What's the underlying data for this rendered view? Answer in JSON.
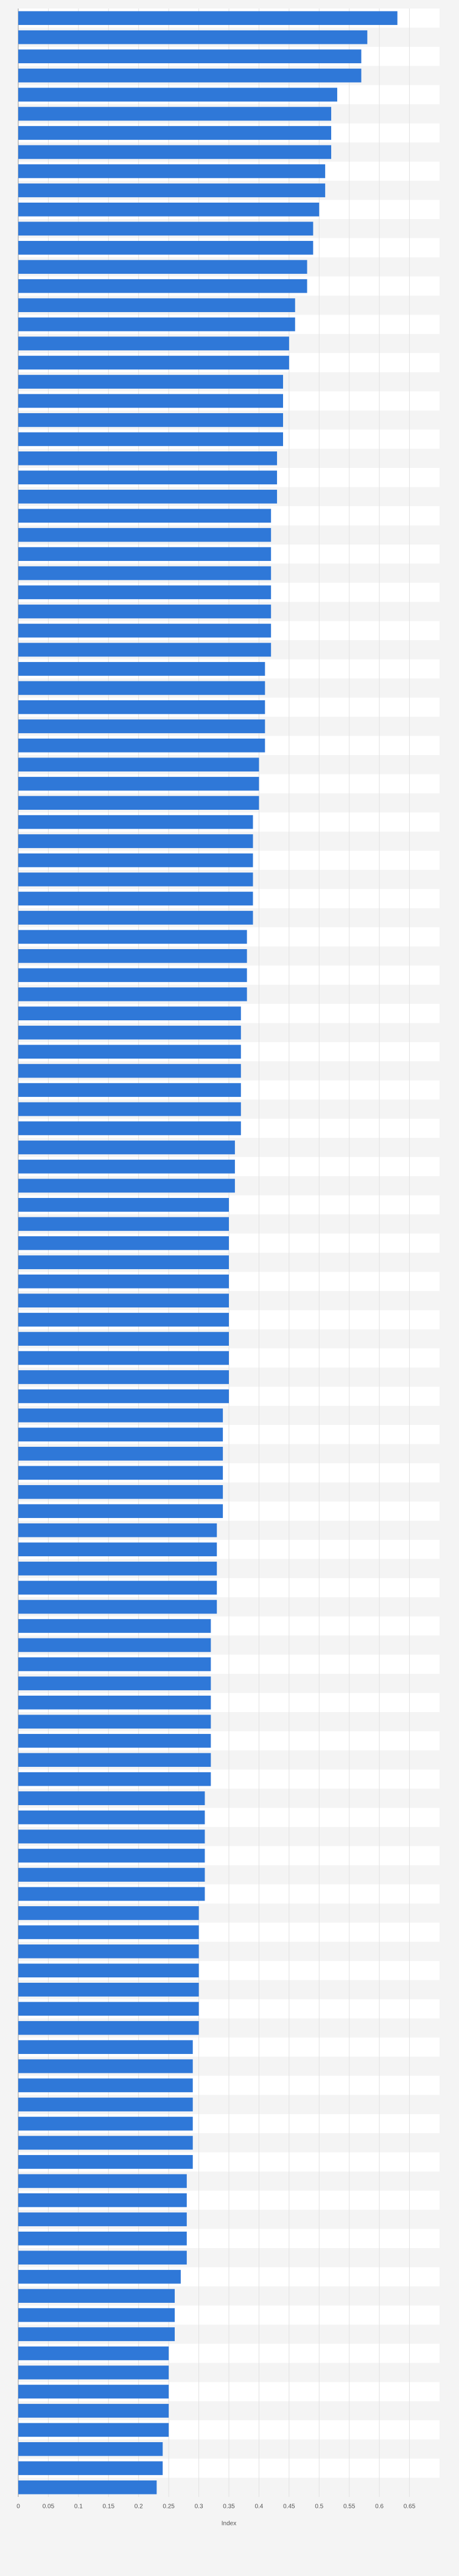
{
  "chart_data": {
    "type": "bar",
    "orientation": "horizontal",
    "x_label": "Index",
    "categories": [
      null,
      null,
      null,
      null,
      null,
      null,
      null,
      null,
      null,
      null,
      null,
      null,
      null,
      null,
      null,
      null,
      null,
      null,
      null,
      null,
      null,
      null,
      null,
      null,
      null,
      null,
      null,
      null,
      null,
      null,
      null,
      null,
      null,
      null,
      null,
      null,
      null,
      null,
      null,
      null,
      null,
      null,
      null,
      null,
      null,
      null,
      null,
      null,
      null,
      null,
      null,
      null,
      null,
      null,
      null,
      null,
      null,
      null,
      null,
      null,
      null,
      null,
      null,
      null,
      null,
      null,
      null,
      null,
      null,
      null,
      null,
      null,
      null,
      null,
      null,
      null,
      null,
      null,
      null,
      null,
      null,
      null,
      null,
      null,
      null,
      null,
      null,
      null,
      null,
      null,
      null,
      null,
      null,
      null,
      null,
      null,
      null,
      null,
      null,
      null,
      null,
      null,
      null,
      null,
      null,
      null,
      null,
      null,
      null,
      null,
      null,
      null,
      null,
      null,
      null,
      null,
      null,
      null,
      null,
      null,
      null,
      null,
      null,
      null,
      null,
      null,
      null,
      null,
      null,
      null
    ],
    "values": [
      0.63,
      0.58,
      0.57,
      0.57,
      0.53,
      0.52,
      0.52,
      0.52,
      0.51,
      0.51,
      0.5,
      0.49,
      0.49,
      0.48,
      0.48,
      0.46,
      0.46,
      0.45,
      0.45,
      0.44,
      0.44,
      0.44,
      0.44,
      0.43,
      0.43,
      0.43,
      0.42,
      0.42,
      0.42,
      0.42,
      0.42,
      0.42,
      0.42,
      0.42,
      0.41,
      0.41,
      0.41,
      0.41,
      0.41,
      0.4,
      0.4,
      0.4,
      0.39,
      0.39,
      0.39,
      0.39,
      0.39,
      0.39,
      0.38,
      0.38,
      0.38,
      0.38,
      0.37,
      0.37,
      0.37,
      0.37,
      0.37,
      0.37,
      0.37,
      0.36,
      0.36,
      0.36,
      0.35,
      0.35,
      0.35,
      0.35,
      0.35,
      0.35,
      0.35,
      0.35,
      0.35,
      0.35,
      0.35,
      0.34,
      0.34,
      0.34,
      0.34,
      0.34,
      0.34,
      0.33,
      0.33,
      0.33,
      0.33,
      0.33,
      0.32,
      0.32,
      0.32,
      0.32,
      0.32,
      0.32,
      0.32,
      0.32,
      0.32,
      0.31,
      0.31,
      0.31,
      0.31,
      0.31,
      0.31,
      0.3,
      0.3,
      0.3,
      0.3,
      0.3,
      0.3,
      0.3,
      0.29,
      0.29,
      0.29,
      0.29,
      0.29,
      0.29,
      0.29,
      0.28,
      0.28,
      0.28,
      0.28,
      0.28,
      0.27,
      0.26,
      0.26,
      0.26,
      0.25,
      0.25,
      0.25,
      0.25,
      0.25,
      0.24,
      0.24,
      0.23
    ],
    "color": "#2f78d8",
    "xlim": [
      0,
      0.7
    ],
    "xticks": [
      0,
      0.05,
      0.1,
      0.15,
      0.2,
      0.25,
      0.3,
      0.35,
      0.4,
      0.45,
      0.5,
      0.55,
      0.6,
      0.65
    ],
    "grid": true
  }
}
